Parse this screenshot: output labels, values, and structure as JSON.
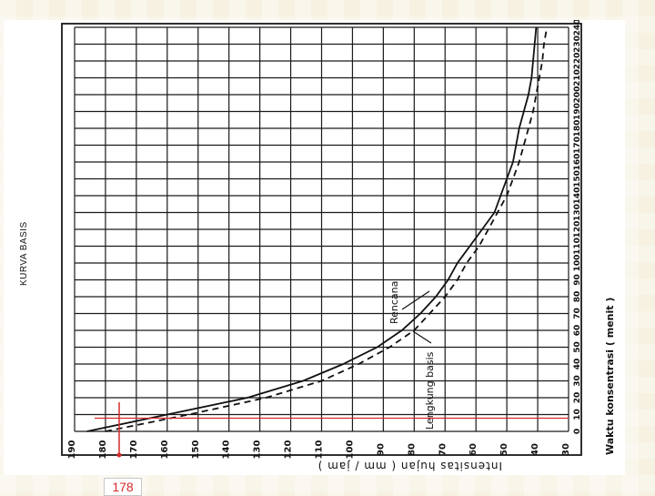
{
  "chart_data": {
    "type": "line",
    "title": "KURVA BASIS",
    "xlabel": "Waktu konsentrasi ( menit )",
    "ylabel": "Intensitas hujan ( mm / jam )",
    "x_ticks": [
      0,
      10,
      20,
      30,
      40,
      50,
      60,
      70,
      80,
      90,
      100,
      110,
      120,
      130,
      140,
      150,
      160,
      170,
      180,
      190,
      200,
      210,
      220,
      230,
      240
    ],
    "y_ticks": [
      190,
      180,
      170,
      160,
      150,
      140,
      130,
      120,
      110,
      100,
      90,
      80,
      70,
      60,
      50,
      40,
      30
    ],
    "xlim": [
      0,
      240
    ],
    "ylim": [
      30,
      190
    ],
    "grid": true,
    "series": [
      {
        "name": "Lengkung basis",
        "style": "solid",
        "x": [
          0,
          10,
          20,
          30,
          40,
          50,
          60,
          70,
          80,
          90,
          100,
          110,
          120,
          130,
          140,
          150,
          160,
          170,
          180,
          190,
          200,
          210,
          220,
          230,
          240
        ],
        "y": [
          186,
          160,
          134,
          116,
          103,
          92,
          84,
          78,
          73,
          69,
          66,
          62,
          58,
          54,
          52,
          50,
          48,
          47,
          46,
          44.5,
          43,
          42,
          41.5,
          41,
          40.5
        ]
      },
      {
        "name": "Rencana",
        "style": "dashed",
        "x": [
          0,
          10,
          20,
          30,
          40,
          50,
          60,
          70,
          80,
          90,
          100,
          110,
          120,
          130,
          140,
          150,
          160,
          170,
          180,
          190,
          200,
          210,
          220,
          230,
          240
        ],
        "y": [
          180,
          153,
          128,
          110,
          98,
          88,
          80,
          75,
          70,
          66,
          63,
          59,
          56,
          53,
          50,
          48,
          46,
          44.5,
          43,
          41.5,
          40.5,
          39.5,
          38.5,
          38,
          37
        ]
      }
    ],
    "annotations": [
      {
        "text": "Rencana",
        "series": "Rencana"
      },
      {
        "text": "Lengkung basis",
        "series": "Lengkung basis"
      }
    ],
    "reference_line": {
      "color": "#d62a2a",
      "x": 10,
      "label": "178"
    }
  }
}
